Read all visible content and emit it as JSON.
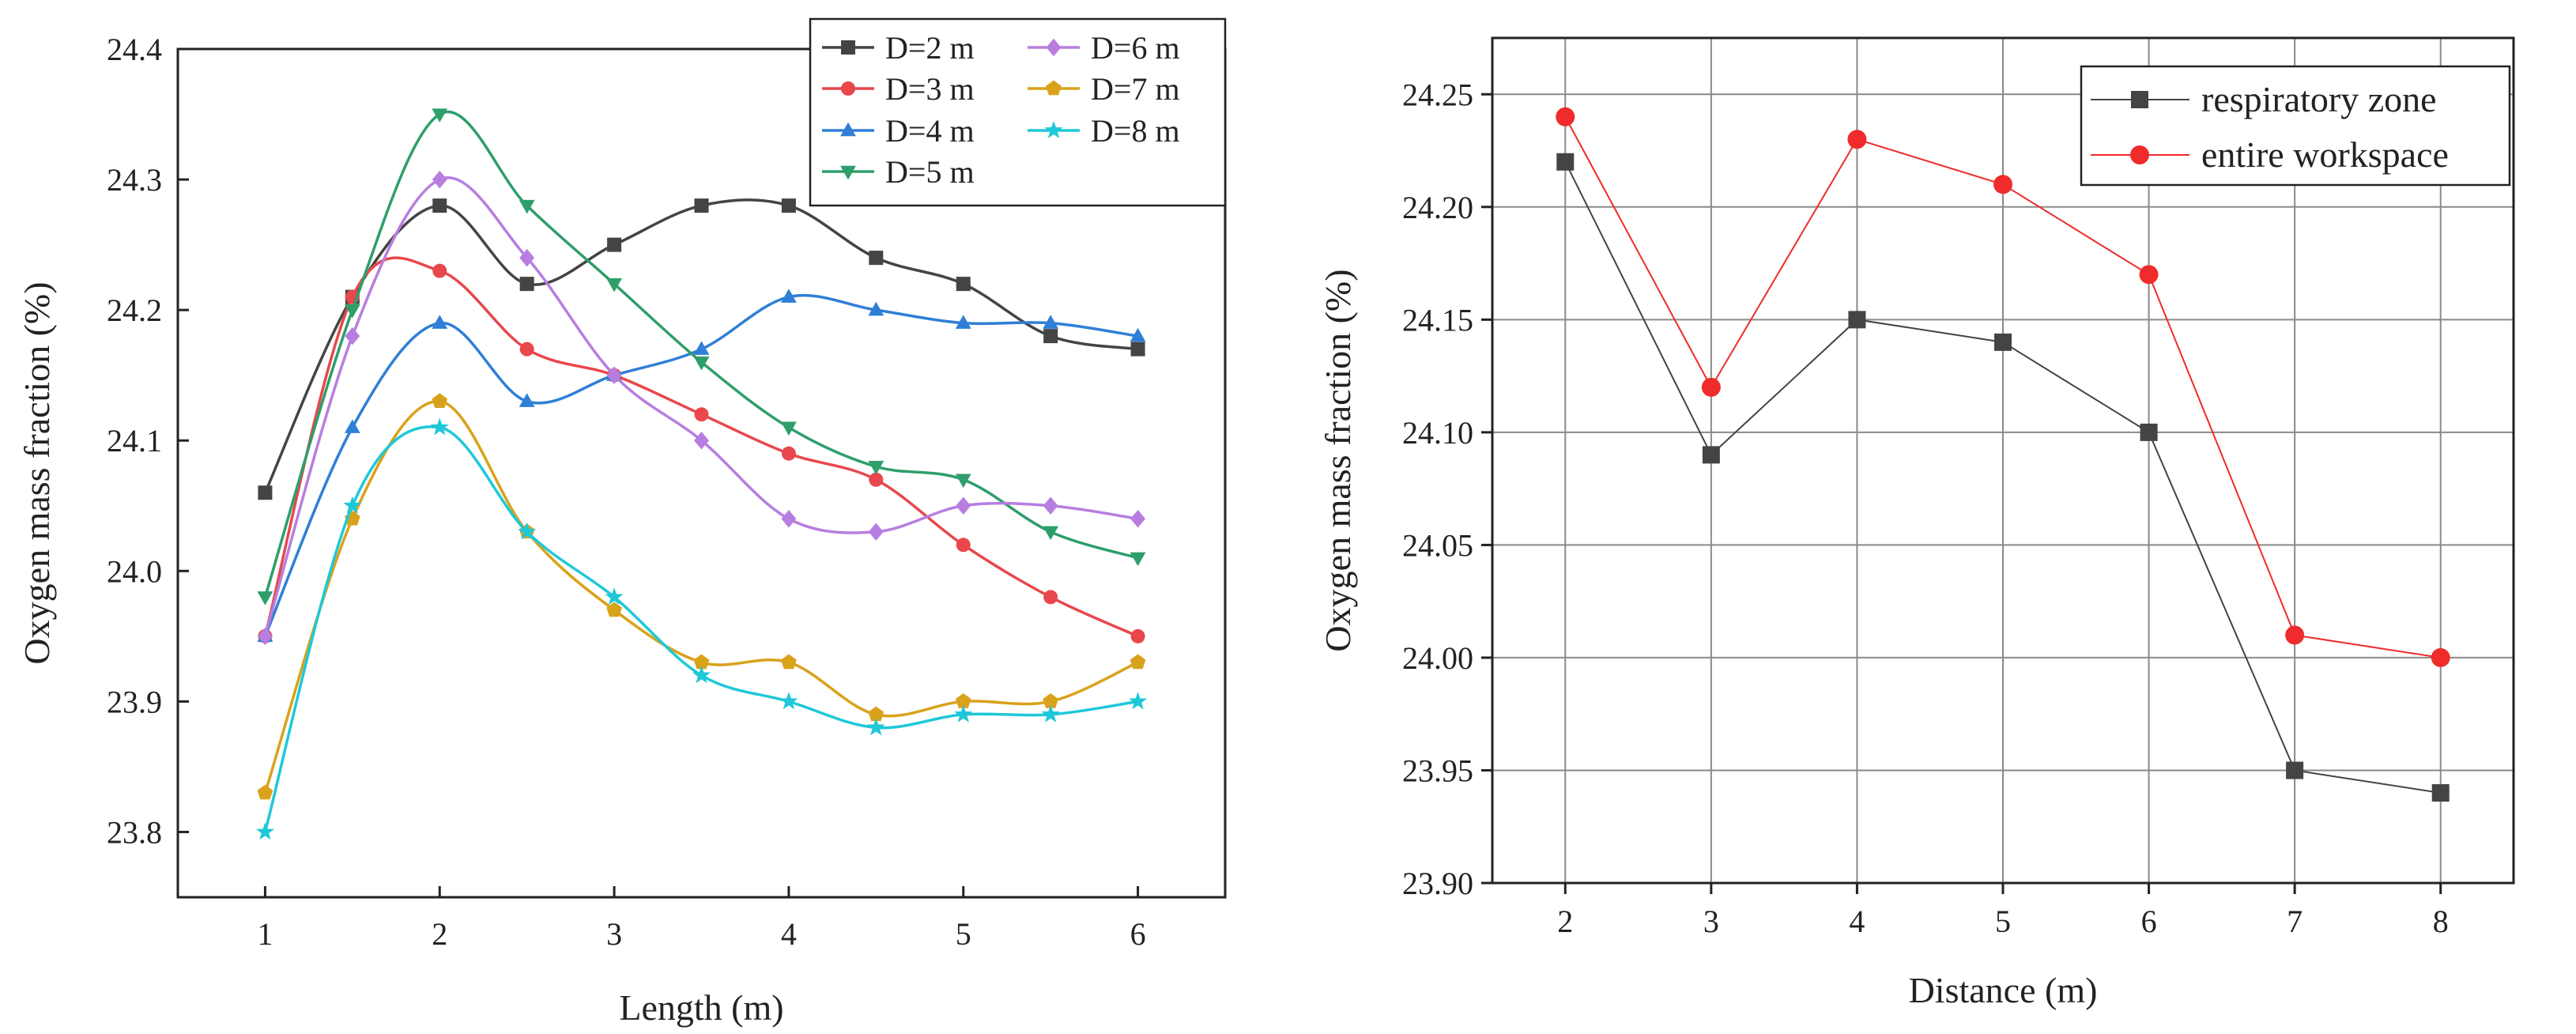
{
  "chart_data": [
    {
      "type": "line",
      "title": "",
      "xlabel": "Length (m)",
      "ylabel": "Oxygen mass fraction (%)",
      "xlim": [
        0.5,
        6.5
      ],
      "ylim": [
        23.75,
        24.4
      ],
      "x": [
        1,
        1.5,
        2,
        2.5,
        3,
        3.5,
        4,
        4.5,
        5,
        5.5,
        6
      ],
      "x_ticks": [
        1,
        2,
        3,
        4,
        5,
        6
      ],
      "x_tick_labels": [
        "1",
        "2",
        "3",
        "4",
        "5",
        "6"
      ],
      "y_ticks": [
        23.8,
        23.9,
        24.0,
        24.1,
        24.2,
        24.3,
        24.4
      ],
      "y_tick_labels": [
        "23.8",
        "23.9",
        "24.0",
        "24.1",
        "24.2",
        "24.3",
        "24.4"
      ],
      "legend_position": "top-right",
      "series": [
        {
          "name": "D=2 m",
          "color": "#444444",
          "marker": "square",
          "values": [
            24.06,
            24.21,
            24.28,
            24.22,
            24.25,
            24.28,
            24.28,
            24.24,
            24.22,
            24.18,
            24.17
          ]
        },
        {
          "name": "D=3 m",
          "color": "#e8474c",
          "marker": "circle",
          "values": [
            23.95,
            24.21,
            24.23,
            24.17,
            24.15,
            24.12,
            24.09,
            24.07,
            24.02,
            23.98,
            23.95
          ]
        },
        {
          "name": "D=4 m",
          "color": "#2f7fd6",
          "marker": "triangle-up",
          "values": [
            23.95,
            24.11,
            24.19,
            24.13,
            24.15,
            24.17,
            24.21,
            24.2,
            24.19,
            24.19,
            24.18
          ]
        },
        {
          "name": "D=5 m",
          "color": "#2e9e6b",
          "marker": "triangle-down",
          "values": [
            23.98,
            24.2,
            24.35,
            24.28,
            24.22,
            24.16,
            24.11,
            24.08,
            24.07,
            24.03,
            24.01
          ]
        },
        {
          "name": "D=6 m",
          "color": "#b77ee0",
          "marker": "diamond",
          "values": [
            23.95,
            24.18,
            24.3,
            24.24,
            24.15,
            24.1,
            24.04,
            24.03,
            24.05,
            24.05,
            24.04
          ]
        },
        {
          "name": "D=7 m",
          "color": "#d9a21b",
          "marker": "pentagon",
          "values": [
            23.83,
            24.04,
            24.13,
            24.03,
            23.97,
            23.93,
            23.93,
            23.89,
            23.9,
            23.9,
            23.93
          ]
        },
        {
          "name": "D=8 m",
          "color": "#1fc8d8",
          "marker": "star",
          "values": [
            23.8,
            24.05,
            24.11,
            24.03,
            23.98,
            23.92,
            23.9,
            23.88,
            23.89,
            23.89,
            23.9
          ]
        }
      ]
    },
    {
      "type": "line",
      "title": "",
      "xlabel": "Distance (m)",
      "ylabel": "Oxygen mass fraction (%)",
      "xlim": [
        1.5,
        8.5
      ],
      "ylim": [
        23.9,
        24.275
      ],
      "grid": true,
      "x": [
        2,
        3,
        4,
        5,
        6,
        7,
        8
      ],
      "x_tick_labels": [
        "2",
        "3",
        "4",
        "5",
        "6",
        "7",
        "8"
      ],
      "y_ticks": [
        23.9,
        23.95,
        24.0,
        24.05,
        24.1,
        24.15,
        24.2,
        24.25
      ],
      "y_tick_labels": [
        "23.90",
        "23.95",
        "24.00",
        "24.05",
        "24.10",
        "24.15",
        "24.20",
        "24.25"
      ],
      "legend_position": "top-right",
      "series": [
        {
          "name": "respiratory zone",
          "color": "#444444",
          "marker": "square",
          "values": [
            24.22,
            24.09,
            24.15,
            24.14,
            24.1,
            23.95,
            23.94
          ]
        },
        {
          "name": "entire workspace",
          "color": "#ef2b2b",
          "marker": "circle",
          "values": [
            24.24,
            24.12,
            24.23,
            24.21,
            24.17,
            24.01,
            24.0
          ]
        }
      ]
    }
  ]
}
